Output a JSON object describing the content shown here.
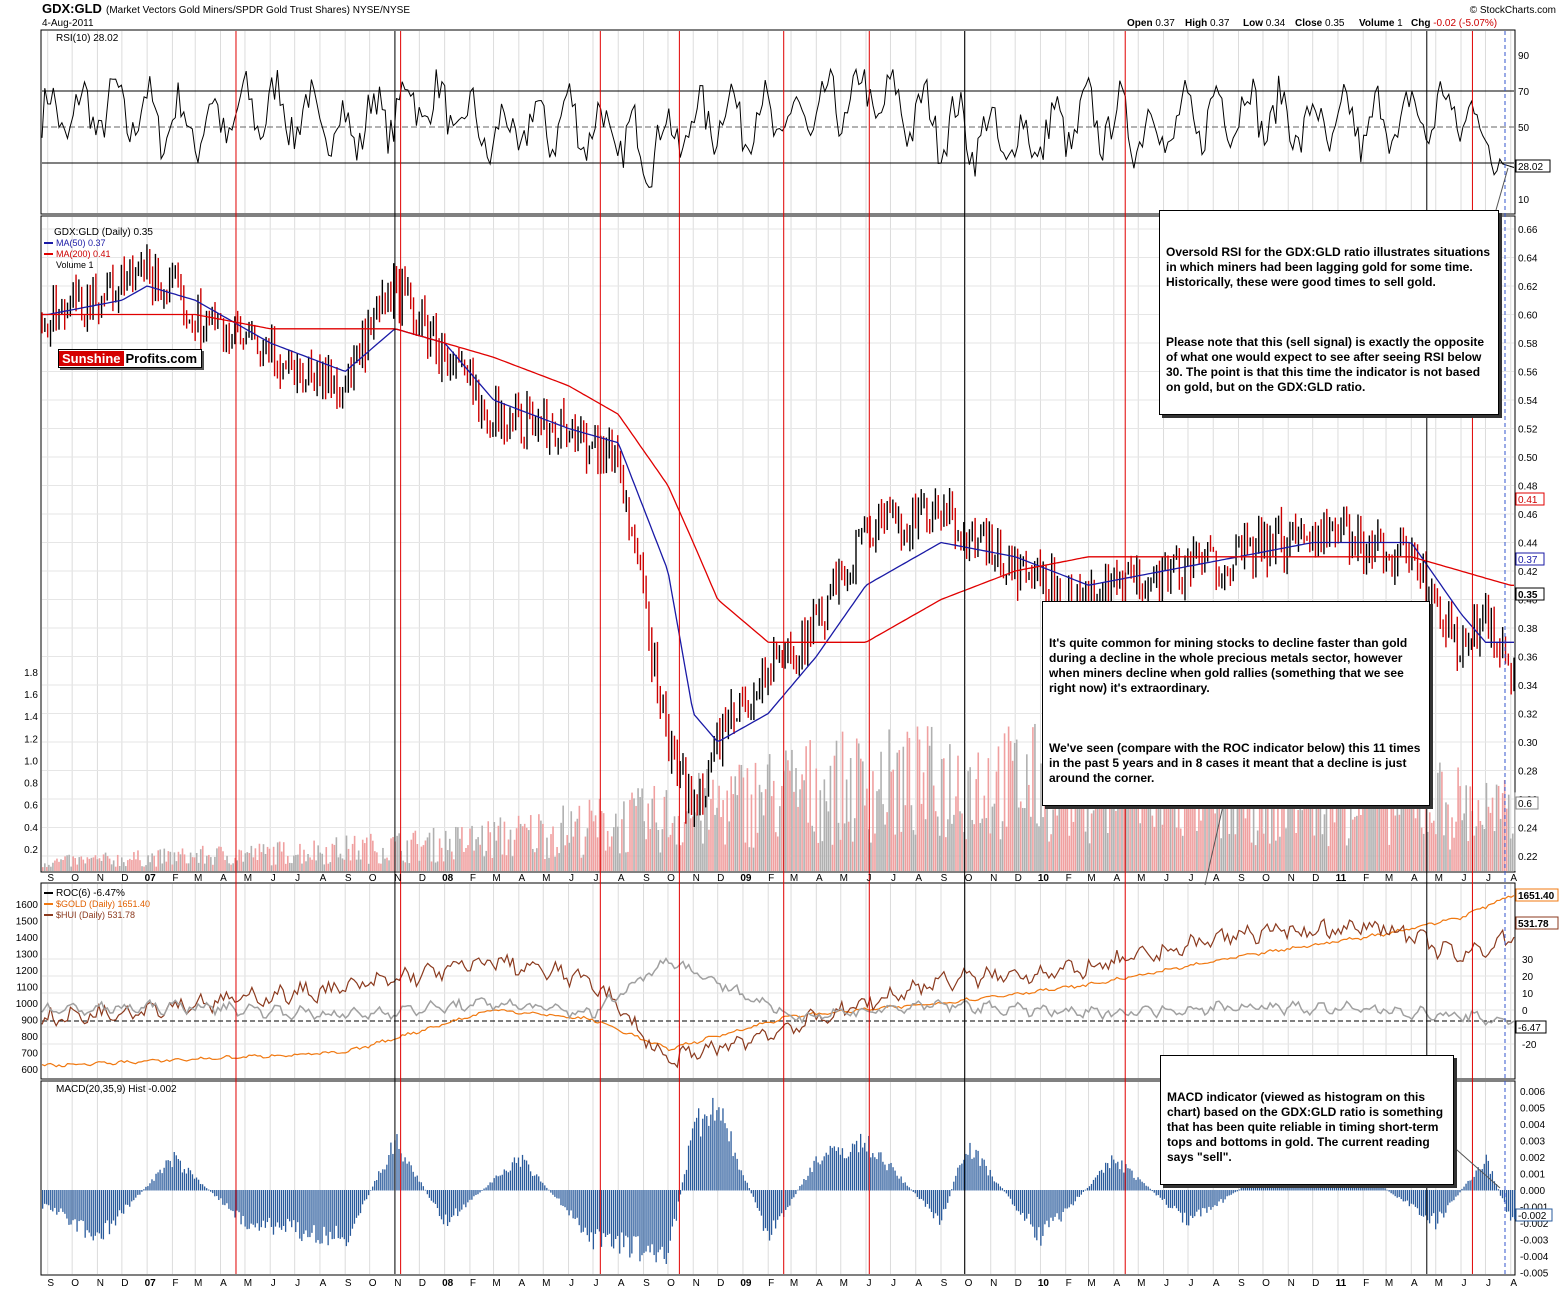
{
  "header": {
    "symbol": "GDX:GLD",
    "description": "(Market Vectors Gold Miners/SPDR Gold Trust Shares) NYSE/NYSE",
    "date": "4-Aug-2011",
    "credit": "© StockCharts.com",
    "quote_labels": [
      "Open",
      "High",
      "Low",
      "Close",
      "Volume",
      "Chg"
    ],
    "quote_values": [
      "0.37",
      "0.37",
      "0.34",
      "0.35",
      "1",
      "-0.02 (-5.07%)"
    ]
  },
  "logo": {
    "part1": "Sunshine",
    "part2": "Profits.com"
  },
  "panels": {
    "rsi": {
      "legend": "RSI(10) 28.02",
      "badge": "28.02",
      "ticks": [
        "90",
        "70",
        "50",
        "30",
        "10"
      ]
    },
    "price": {
      "legend_main": "GDX:GLD (Daily) 0.35",
      "legend_ma50": "MA(50) 0.37",
      "legend_ma200": "MA(200) 0.41",
      "legend_vol": "Volume 1",
      "ticks": [
        "0.66",
        "0.64",
        "0.62",
        "0.60",
        "0.58",
        "0.56",
        "0.54",
        "0.52",
        "0.50",
        "0.48",
        "0.46",
        "0.44",
        "0.42",
        "0.40",
        "0.38",
        "0.36",
        "0.34",
        "0.32",
        "0.30",
        "0.28",
        "0.26",
        "0.24",
        "0.22"
      ],
      "vol_ticks": [
        "1.8",
        "1.6",
        "1.4",
        "1.2",
        "1.0",
        "0.8",
        "0.6",
        "0.4",
        "0.2"
      ],
      "badge_ma200": "0.41",
      "badge_ma50": "0.37",
      "badge_close": "0.35",
      "badge_vol": "0.6"
    },
    "roc": {
      "legend_roc": "ROC(6) -6.47%",
      "legend_gold": "$GOLD (Daily) 1651.40",
      "legend_hui": "$HUI (Daily) 531.78",
      "left_ticks": [
        "1600",
        "1500",
        "1400",
        "1300",
        "1200",
        "1100",
        "1000",
        "900",
        "800",
        "700",
        "600"
      ],
      "right_ticks": [
        "30",
        "20",
        "10",
        "0",
        "-10",
        "-20"
      ],
      "badge_gold": "1651.40",
      "badge_hui": "531.78",
      "badge_roc": "-6.47"
    },
    "macd": {
      "legend": "MACD(20,35,9) Hist -0.002",
      "badge": "-0.002",
      "ticks": [
        "0.006",
        "0.005",
        "0.004",
        "0.003",
        "0.002",
        "0.001",
        "0.000",
        "-0.001",
        "-0.002",
        "-0.003",
        "-0.004",
        "-0.005"
      ]
    }
  },
  "x_axis_labels": [
    "S",
    "O",
    "N",
    "D",
    "07",
    "F",
    "M",
    "A",
    "M",
    "J",
    "J",
    "A",
    "S",
    "O",
    "N",
    "D",
    "08",
    "F",
    "M",
    "A",
    "M",
    "J",
    "J",
    "A",
    "S",
    "O",
    "N",
    "D",
    "09",
    "F",
    "M",
    "A",
    "M",
    "J",
    "J",
    "A",
    "S",
    "O",
    "N",
    "D",
    "10",
    "F",
    "M",
    "A",
    "M",
    "J",
    "J",
    "A",
    "S",
    "O",
    "N",
    "D",
    "11",
    "F",
    "M",
    "A",
    "M",
    "J",
    "J",
    "A"
  ],
  "annotations": {
    "rsi_note": [
      "Oversold RSI for the GDX:GLD ratio illustrates situations in which miners had been lagging gold for some time. Historically, these were good times to sell gold.",
      "Please note that this (sell signal) is exactly the opposite of what one would expect to see after seeing RSI below 30. The point is that this time the indicator is not based on gold, but on the GDX:GLD ratio."
    ],
    "decline_note": [
      "It's quite common for mining stocks to decline faster than gold during a decline in the whole precious metals sector, however when miners decline when gold rallies (something that we see right now) it's extraordinary.",
      "We've seen (compare with the ROC indicator below) this 11 times in the past 5 years and in 8 cases it meant that a decline is just around the corner."
    ],
    "macd_note": [
      "MACD indicator (viewed as histogram on this chart) based on the GDX:GLD ratio is something that has been quite reliable in timing short-term tops and bottoms in gold. The current reading says \"sell\"."
    ]
  },
  "colors": {
    "price_up": "#000000",
    "price_down": "#cc0000",
    "ma50": "#1a1aa6",
    "ma200": "#e00000",
    "gold": "#f07810",
    "hui": "#8b3a1e",
    "roc": "#a0a0a0",
    "macd": "#2a5b9c",
    "vline_red": "#e00000",
    "vline_black": "#000000",
    "volume_red": "#f0a0a0",
    "volume_gray": "#b0b0b0"
  },
  "chart_data": [
    {
      "type": "line",
      "title": "GDX:GLD RSI(10)",
      "ylim": [
        0,
        100
      ],
      "x": [
        "2006-09",
        "2006-12",
        "2007-03",
        "2007-06",
        "2007-09",
        "2007-12",
        "2008-03",
        "2008-06",
        "2008-09",
        "2008-12",
        "2009-03",
        "2009-06",
        "2009-09",
        "2009-12",
        "2010-03",
        "2010-06",
        "2010-09",
        "2010-12",
        "2011-03",
        "2011-06",
        "2011-08"
      ],
      "values": [
        55,
        60,
        50,
        62,
        48,
        66,
        44,
        55,
        38,
        58,
        52,
        68,
        52,
        40,
        55,
        48,
        62,
        50,
        52,
        60,
        28
      ]
    },
    {
      "type": "line",
      "title": "GDX:GLD (Daily)",
      "x": [
        "2006-09",
        "2006-12",
        "2007-01",
        "2007-03",
        "2007-06",
        "2007-09",
        "2007-11",
        "2008-01",
        "2008-03",
        "2008-06",
        "2008-08",
        "2008-10",
        "2008-11",
        "2008-12",
        "2009-02",
        "2009-04",
        "2009-06",
        "2009-09",
        "2009-12",
        "2010-03",
        "2010-06",
        "2010-09",
        "2010-12",
        "2011-04",
        "2011-06",
        "2011-07",
        "2011-08"
      ],
      "series": [
        {
          "name": "GDX:GLD",
          "values": [
            0.6,
            0.62,
            0.63,
            0.6,
            0.57,
            0.55,
            0.62,
            0.57,
            0.53,
            0.52,
            0.5,
            0.3,
            0.25,
            0.3,
            0.35,
            0.38,
            0.45,
            0.46,
            0.42,
            0.4,
            0.42,
            0.43,
            0.45,
            0.43,
            0.36,
            0.39,
            0.35
          ]
        },
        {
          "name": "MA(50)",
          "values": [
            0.6,
            0.61,
            0.62,
            0.61,
            0.58,
            0.56,
            0.59,
            0.58,
            0.54,
            0.52,
            0.51,
            0.42,
            0.32,
            0.3,
            0.32,
            0.36,
            0.41,
            0.44,
            0.43,
            0.41,
            0.42,
            0.43,
            0.44,
            0.44,
            0.39,
            0.37,
            0.37
          ]
        },
        {
          "name": "MA(200)",
          "values": [
            0.6,
            0.6,
            0.6,
            0.6,
            0.59,
            0.59,
            0.59,
            0.58,
            0.57,
            0.55,
            0.53,
            0.48,
            0.44,
            0.4,
            0.37,
            0.37,
            0.37,
            0.4,
            0.42,
            0.43,
            0.43,
            0.43,
            0.43,
            0.43,
            0.42,
            0.415,
            0.41
          ]
        }
      ]
    },
    {
      "type": "bar",
      "title": "Volume",
      "ylim": [
        0,
        1.8
      ],
      "x": [
        "2006-09",
        "2007-06",
        "2008-01",
        "2008-10",
        "2009-03",
        "2009-09",
        "2010-03",
        "2010-09",
        "2011-03",
        "2011-08"
      ],
      "values": [
        0.1,
        0.2,
        0.3,
        0.6,
        0.9,
        1.0,
        1.0,
        0.9,
        0.9,
        0.6
      ]
    },
    {
      "type": "line",
      "title": "ROC / $GOLD / $HUI",
      "x": [
        "2006-09",
        "2007-03",
        "2007-09",
        "2008-03",
        "2008-07",
        "2008-10",
        "2009-03",
        "2009-09",
        "2010-03",
        "2010-09",
        "2011-03",
        "2011-06",
        "2011-08"
      ],
      "series": [
        {
          "name": "$GOLD",
          "values": [
            620,
            660,
            700,
            960,
            900,
            720,
            920,
            1000,
            1110,
            1280,
            1420,
            1520,
            1651.4
          ]
        },
        {
          "name": "$HUI",
          "values": [
            320,
            360,
            400,
            470,
            420,
            210,
            300,
            420,
            450,
            540,
            560,
            480,
            531.78
          ]
        },
        {
          "name": "ROC(6)",
          "values": [
            0,
            2,
            -3,
            4,
            -2,
            30,
            -4,
            3,
            -2,
            2,
            0,
            -4,
            -6.47
          ]
        }
      ]
    },
    {
      "type": "bar",
      "title": "MACD(20,35,9) Hist",
      "ylim": [
        -0.005,
        0.006
      ],
      "x": [
        "2006-09",
        "2006-11",
        "2007-02",
        "2007-05",
        "2007-09",
        "2007-11",
        "2008-01",
        "2008-04",
        "2008-07",
        "2008-10",
        "2008-11",
        "2008-12",
        "2009-02",
        "2009-04",
        "2009-06",
        "2009-09",
        "2009-10",
        "2010-01",
        "2010-04",
        "2010-07",
        "2010-10",
        "2011-01",
        "2011-04",
        "2011-05",
        "2011-07",
        "2011-08"
      ],
      "values": [
        -0.001,
        -0.003,
        0.002,
        -0.002,
        -0.003,
        0.003,
        -0.002,
        0.002,
        -0.003,
        -0.004,
        0.004,
        0.005,
        -0.003,
        0.002,
        0.003,
        -0.002,
        0.003,
        -0.003,
        0.002,
        -0.002,
        0.001,
        0.002,
        -0.001,
        -0.002,
        0.002,
        -0.002
      ]
    }
  ]
}
